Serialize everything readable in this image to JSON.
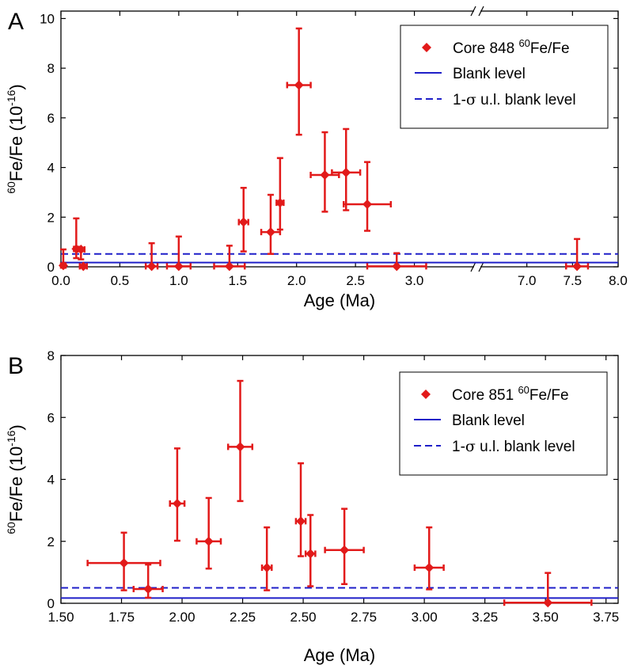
{
  "colors": {
    "data": "#e21a1a",
    "blank": "#1f1fc8",
    "axis": "#000000"
  },
  "chart_data": [
    {
      "type": "scatter",
      "panel_label": "A",
      "xlabel": "Age (Ma)",
      "ylabel_sup": "60",
      "ylabel_main": "Fe/Fe (10",
      "ylabel_exp": "-16",
      "ylabel_end": ")",
      "xaxis_break": true,
      "xlim_segments": [
        [
          0.0,
          3.5
        ],
        [
          6.5,
          8.0
        ]
      ],
      "ylim": [
        0,
        10.3
      ],
      "xticks": [
        {
          "v": 0.0,
          "label": "0.0"
        },
        {
          "v": 0.5,
          "label": "0.5"
        },
        {
          "v": 1.0,
          "label": "1.0"
        },
        {
          "v": 1.5,
          "label": "1.5"
        },
        {
          "v": 2.0,
          "label": "2.0"
        },
        {
          "v": 2.5,
          "label": "2.5"
        },
        {
          "v": 3.0,
          "label": "3.0"
        },
        {
          "v": 7.0,
          "label": "7.0"
        },
        {
          "v": 7.5,
          "label": "7.5"
        },
        {
          "v": 8.0,
          "label": "8.0"
        }
      ],
      "yticks": [
        {
          "v": 0,
          "label": "0"
        },
        {
          "v": 2,
          "label": "2"
        },
        {
          "v": 4,
          "label": "4"
        },
        {
          "v": 6,
          "label": "6"
        },
        {
          "v": 8,
          "label": "8"
        },
        {
          "v": 10,
          "label": "10"
        }
      ],
      "blank_level": 0.17,
      "blank_ul": 0.52,
      "legend": {
        "series_prefix": "Core 848 ",
        "series_sup": "60",
        "series_suffix": "Fe/Fe",
        "blank_label": "Blank level",
        "ul_prefix": "1-",
        "ul_symbol": "σ",
        "ul_suffix": " u.l. blank level"
      },
      "points": [
        {
          "x": 0.02,
          "y": 0.05,
          "xerr": 0.02,
          "ylo": 0.05,
          "yhi": 0.7
        },
        {
          "x": 0.13,
          "y": 0.72,
          "xerr": 0.02,
          "ylo": 0.35,
          "yhi": 1.95
        },
        {
          "x": 0.17,
          "y": 0.7,
          "xerr": 0.03,
          "ylo": 0.3,
          "yhi": 0.72
        },
        {
          "x": 0.19,
          "y": 0.02,
          "xerr": 0.03,
          "ylo": 0.02,
          "yhi": 0.02
        },
        {
          "x": 0.77,
          "y": 0.02,
          "xerr": 0.05,
          "ylo": 0.02,
          "yhi": 0.95
        },
        {
          "x": 1.0,
          "y": 0.02,
          "xerr": 0.1,
          "ylo": 0.02,
          "yhi": 1.22
        },
        {
          "x": 1.43,
          "y": 0.02,
          "xerr": 0.13,
          "ylo": 0.02,
          "yhi": 0.85
        },
        {
          "x": 1.55,
          "y": 1.8,
          "xerr": 0.04,
          "ylo": 0.62,
          "yhi": 3.18
        },
        {
          "x": 1.78,
          "y": 1.4,
          "xerr": 0.08,
          "ylo": 0.52,
          "yhi": 2.9
        },
        {
          "x": 1.86,
          "y": 2.58,
          "xerr": 0.03,
          "ylo": 1.5,
          "yhi": 4.38
        },
        {
          "x": 2.02,
          "y": 7.32,
          "xerr": 0.1,
          "ylo": 5.32,
          "yhi": 9.6
        },
        {
          "x": 2.24,
          "y": 3.7,
          "xerr": 0.12,
          "ylo": 2.22,
          "yhi": 5.42
        },
        {
          "x": 2.42,
          "y": 3.8,
          "xerr": 0.12,
          "ylo": 2.28,
          "yhi": 5.55
        },
        {
          "x": 2.6,
          "y": 2.52,
          "xerr": 0.2,
          "ylo": 1.45,
          "yhi": 4.22
        },
        {
          "x": 2.85,
          "y": 0.02,
          "xerr": 0.25,
          "ylo": 0.02,
          "yhi": 0.55
        },
        {
          "x": 7.55,
          "y": 0.02,
          "xerr": 0.12,
          "ylo": 0.02,
          "yhi": 1.12
        }
      ]
    },
    {
      "type": "scatter",
      "panel_label": "B",
      "xlabel": "Age (Ma)",
      "ylabel_sup": "60",
      "ylabel_main": "Fe/Fe (10",
      "ylabel_exp": "-16",
      "ylabel_end": ")",
      "xaxis_break": false,
      "xlim": [
        1.5,
        3.8
      ],
      "ylim": [
        0,
        8
      ],
      "xticks": [
        {
          "v": 1.5,
          "label": "1.50"
        },
        {
          "v": 1.75,
          "label": "1.75"
        },
        {
          "v": 2.0,
          "label": "2.00"
        },
        {
          "v": 2.25,
          "label": "2.25"
        },
        {
          "v": 2.5,
          "label": "2.50"
        },
        {
          "v": 2.75,
          "label": "2.75"
        },
        {
          "v": 3.0,
          "label": "3.00"
        },
        {
          "v": 3.25,
          "label": "3.25"
        },
        {
          "v": 3.5,
          "label": "3.50"
        },
        {
          "v": 3.75,
          "label": "3.75"
        }
      ],
      "yticks": [
        {
          "v": 0,
          "label": "0"
        },
        {
          "v": 2,
          "label": "2"
        },
        {
          "v": 4,
          "label": "4"
        },
        {
          "v": 6,
          "label": "6"
        },
        {
          "v": 8,
          "label": "8"
        }
      ],
      "blank_level": 0.17,
      "blank_ul": 0.5,
      "legend": {
        "series_prefix": "Core 851 ",
        "series_sup": "60",
        "series_suffix": "Fe/Fe",
        "blank_label": "Blank level",
        "ul_prefix": "1-",
        "ul_symbol": "σ",
        "ul_suffix": " u.l. blank level"
      },
      "points": [
        {
          "x": 1.76,
          "y": 1.3,
          "xerr": 0.15,
          "ylo": 0.42,
          "yhi": 2.28
        },
        {
          "x": 1.86,
          "y": 0.46,
          "xerr": 0.06,
          "ylo": 0.18,
          "yhi": 1.25
        },
        {
          "x": 1.98,
          "y": 3.22,
          "xerr": 0.03,
          "ylo": 2.02,
          "yhi": 5.0
        },
        {
          "x": 2.11,
          "y": 2.0,
          "xerr": 0.05,
          "ylo": 1.12,
          "yhi": 3.4
        },
        {
          "x": 2.24,
          "y": 5.05,
          "xerr": 0.05,
          "ylo": 3.3,
          "yhi": 7.18
        },
        {
          "x": 2.35,
          "y": 1.15,
          "xerr": 0.02,
          "ylo": 0.42,
          "yhi": 2.45
        },
        {
          "x": 2.49,
          "y": 2.65,
          "xerr": 0.02,
          "ylo": 1.52,
          "yhi": 4.52
        },
        {
          "x": 2.53,
          "y": 1.6,
          "xerr": 0.02,
          "ylo": 0.55,
          "yhi": 2.85
        },
        {
          "x": 2.67,
          "y": 1.72,
          "xerr": 0.08,
          "ylo": 0.62,
          "yhi": 3.05
        },
        {
          "x": 3.02,
          "y": 1.15,
          "xerr": 0.06,
          "ylo": 0.45,
          "yhi": 2.45
        },
        {
          "x": 3.51,
          "y": 0.02,
          "xerr": 0.18,
          "ylo": 0.02,
          "yhi": 0.98
        }
      ]
    }
  ]
}
